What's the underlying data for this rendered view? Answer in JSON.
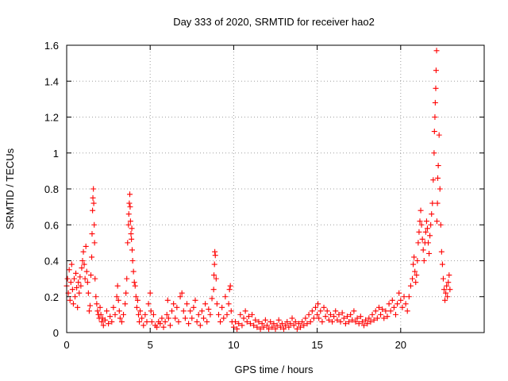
{
  "chart_data": {
    "type": "scatter",
    "title": "Day 333 of 2020, SRMTID for receiver hao2",
    "xlabel": "GPS time / hours",
    "ylabel": "SRMTID / TECUs",
    "xlim": [
      0,
      25
    ],
    "ylim": [
      0,
      1.6
    ],
    "x_ticks": [
      0,
      5,
      10,
      15,
      20
    ],
    "x_tick_labels": [
      "0",
      "5",
      "10",
      "15",
      "20"
    ],
    "y_ticks": [
      0,
      0.2,
      0.4,
      0.6,
      0.8,
      1,
      1.2,
      1.4,
      1.6
    ],
    "y_tick_labels": [
      "0",
      "0.2",
      "0.4",
      "0.6",
      "0.8",
      "1",
      "1.2",
      "1.4",
      "1.6"
    ],
    "grid": true,
    "marker": "plus",
    "series_color": "#ff0000",
    "series": [
      {
        "name": "SRMTID",
        "points": [
          [
            0.0,
            0.26
          ],
          [
            0.05,
            0.3
          ],
          [
            0.1,
            0.22
          ],
          [
            0.15,
            0.35
          ],
          [
            0.2,
            0.18
          ],
          [
            0.25,
            0.28
          ],
          [
            0.3,
            0.38
          ],
          [
            0.35,
            0.24
          ],
          [
            0.4,
            0.16
          ],
          [
            0.45,
            0.3
          ],
          [
            0.5,
            0.2
          ],
          [
            0.55,
            0.33
          ],
          [
            0.6,
            0.25
          ],
          [
            0.65,
            0.14
          ],
          [
            0.7,
            0.28
          ],
          [
            0.75,
            0.22
          ],
          [
            0.8,
            0.31
          ],
          [
            0.85,
            0.26
          ],
          [
            0.9,
            0.36
          ],
          [
            0.95,
            0.4
          ],
          [
            1.0,
            0.45
          ],
          [
            1.05,
            0.38
          ],
          [
            1.1,
            0.3
          ],
          [
            1.15,
            0.48
          ],
          [
            1.2,
            0.34
          ],
          [
            1.25,
            0.28
          ],
          [
            1.3,
            0.22
          ],
          [
            1.35,
            0.12
          ],
          [
            1.4,
            0.15
          ],
          [
            1.45,
            0.32
          ],
          [
            1.5,
            0.42
          ],
          [
            1.52,
            0.55
          ],
          [
            1.55,
            0.68
          ],
          [
            1.57,
            0.75
          ],
          [
            1.6,
            0.8
          ],
          [
            1.62,
            0.72
          ],
          [
            1.65,
            0.6
          ],
          [
            1.67,
            0.5
          ],
          [
            1.7,
            0.3
          ],
          [
            1.75,
            0.2
          ],
          [
            1.8,
            0.16
          ],
          [
            1.85,
            0.12
          ],
          [
            1.9,
            0.1
          ],
          [
            1.95,
            0.08
          ],
          [
            2.0,
            0.14
          ],
          [
            2.05,
            0.1
          ],
          [
            2.1,
            0.06
          ],
          [
            2.15,
            0.08
          ],
          [
            2.2,
            0.04
          ],
          [
            2.3,
            0.07
          ],
          [
            2.4,
            0.12
          ],
          [
            2.5,
            0.05
          ],
          [
            2.6,
            0.09
          ],
          [
            2.7,
            0.06
          ],
          [
            2.8,
            0.14
          ],
          [
            2.9,
            0.1
          ],
          [
            3.0,
            0.2
          ],
          [
            3.05,
            0.26
          ],
          [
            3.1,
            0.18
          ],
          [
            3.15,
            0.12
          ],
          [
            3.2,
            0.08
          ],
          [
            3.3,
            0.06
          ],
          [
            3.4,
            0.1
          ],
          [
            3.5,
            0.16
          ],
          [
            3.55,
            0.22
          ],
          [
            3.6,
            0.3
          ],
          [
            3.65,
            0.5
          ],
          [
            3.7,
            0.6
          ],
          [
            3.72,
            0.66
          ],
          [
            3.75,
            0.72
          ],
          [
            3.78,
            0.77
          ],
          [
            3.8,
            0.7
          ],
          [
            3.82,
            0.62
          ],
          [
            3.85,
            0.55
          ],
          [
            3.88,
            0.52
          ],
          [
            3.9,
            0.58
          ],
          [
            3.92,
            0.46
          ],
          [
            3.95,
            0.4
          ],
          [
            4.0,
            0.34
          ],
          [
            4.05,
            0.28
          ],
          [
            4.1,
            0.26
          ],
          [
            4.15,
            0.2
          ],
          [
            4.2,
            0.14
          ],
          [
            4.25,
            0.18
          ],
          [
            4.3,
            0.1
          ],
          [
            4.35,
            0.06
          ],
          [
            4.4,
            0.12
          ],
          [
            4.5,
            0.08
          ],
          [
            4.6,
            0.04
          ],
          [
            4.7,
            0.1
          ],
          [
            4.8,
            0.06
          ],
          [
            4.9,
            0.16
          ],
          [
            5.0,
            0.22
          ],
          [
            5.05,
            0.12
          ],
          [
            5.1,
            0.06
          ],
          [
            5.2,
            0.1
          ],
          [
            5.3,
            0.04
          ],
          [
            5.4,
            0.03
          ],
          [
            5.5,
            0.06
          ],
          [
            5.6,
            0.05
          ],
          [
            5.7,
            0.08
          ],
          [
            5.8,
            0.03
          ],
          [
            5.9,
            0.06
          ],
          [
            6.0,
            0.1
          ],
          [
            6.05,
            0.18
          ],
          [
            6.1,
            0.08
          ],
          [
            6.2,
            0.04
          ],
          [
            6.3,
            0.12
          ],
          [
            6.4,
            0.16
          ],
          [
            6.5,
            0.08
          ],
          [
            6.6,
            0.14
          ],
          [
            6.7,
            0.06
          ],
          [
            6.8,
            0.2
          ],
          [
            6.9,
            0.22
          ],
          [
            7.0,
            0.12
          ],
          [
            7.1,
            0.08
          ],
          [
            7.2,
            0.16
          ],
          [
            7.3,
            0.05
          ],
          [
            7.4,
            0.12
          ],
          [
            7.5,
            0.08
          ],
          [
            7.6,
            0.14
          ],
          [
            7.7,
            0.18
          ],
          [
            7.8,
            0.06
          ],
          [
            7.9,
            0.1
          ],
          [
            8.0,
            0.04
          ],
          [
            8.1,
            0.12
          ],
          [
            8.2,
            0.08
          ],
          [
            8.3,
            0.16
          ],
          [
            8.4,
            0.06
          ],
          [
            8.5,
            0.13
          ],
          [
            8.6,
            0.1
          ],
          [
            8.7,
            0.19
          ],
          [
            8.8,
            0.24
          ],
          [
            8.82,
            0.32
          ],
          [
            8.85,
            0.38
          ],
          [
            8.87,
            0.45
          ],
          [
            8.9,
            0.43
          ],
          [
            8.95,
            0.3
          ],
          [
            9.0,
            0.16
          ],
          [
            9.1,
            0.1
          ],
          [
            9.2,
            0.06
          ],
          [
            9.3,
            0.14
          ],
          [
            9.4,
            0.08
          ],
          [
            9.5,
            0.2
          ],
          [
            9.6,
            0.1
          ],
          [
            9.7,
            0.16
          ],
          [
            9.75,
            0.24
          ],
          [
            9.8,
            0.26
          ],
          [
            9.85,
            0.12
          ],
          [
            9.9,
            0.06
          ],
          [
            10.0,
            0.03
          ],
          [
            10.1,
            0.06
          ],
          [
            10.2,
            0.02
          ],
          [
            10.3,
            0.05
          ],
          [
            10.4,
            0.1
          ],
          [
            10.5,
            0.04
          ],
          [
            10.6,
            0.08
          ],
          [
            10.7,
            0.12
          ],
          [
            10.8,
            0.06
          ],
          [
            10.9,
            0.09
          ],
          [
            11.0,
            0.05
          ],
          [
            11.1,
            0.1
          ],
          [
            11.2,
            0.04
          ],
          [
            11.3,
            0.07
          ],
          [
            11.4,
            0.03
          ],
          [
            11.5,
            0.06
          ],
          [
            11.6,
            0.02
          ],
          [
            11.7,
            0.05
          ],
          [
            11.8,
            0.03
          ],
          [
            11.9,
            0.07
          ],
          [
            12.0,
            0.04
          ],
          [
            12.1,
            0.02
          ],
          [
            12.2,
            0.06
          ],
          [
            12.3,
            0.03
          ],
          [
            12.4,
            0.05
          ],
          [
            12.5,
            0.02
          ],
          [
            12.6,
            0.04
          ],
          [
            12.7,
            0.07
          ],
          [
            12.8,
            0.03
          ],
          [
            12.9,
            0.05
          ],
          [
            13.0,
            0.02
          ],
          [
            13.1,
            0.04
          ],
          [
            13.2,
            0.06
          ],
          [
            13.3,
            0.03
          ],
          [
            13.4,
            0.05
          ],
          [
            13.5,
            0.08
          ],
          [
            13.6,
            0.04
          ],
          [
            13.7,
            0.06
          ],
          [
            13.8,
            0.02
          ],
          [
            13.9,
            0.05
          ],
          [
            14.0,
            0.03
          ],
          [
            14.1,
            0.06
          ],
          [
            14.2,
            0.04
          ],
          [
            14.3,
            0.08
          ],
          [
            14.4,
            0.05
          ],
          [
            14.5,
            0.1
          ],
          [
            14.6,
            0.06
          ],
          [
            14.7,
            0.12
          ],
          [
            14.8,
            0.08
          ],
          [
            14.9,
            0.14
          ],
          [
            15.0,
            0.1
          ],
          [
            15.05,
            0.16
          ],
          [
            15.1,
            0.08
          ],
          [
            15.2,
            0.12
          ],
          [
            15.3,
            0.06
          ],
          [
            15.4,
            0.14
          ],
          [
            15.5,
            0.09
          ],
          [
            15.6,
            0.12
          ],
          [
            15.7,
            0.07
          ],
          [
            15.8,
            0.1
          ],
          [
            15.9,
            0.06
          ],
          [
            16.0,
            0.09
          ],
          [
            16.1,
            0.12
          ],
          [
            16.2,
            0.07
          ],
          [
            16.3,
            0.1
          ],
          [
            16.4,
            0.06
          ],
          [
            16.5,
            0.11
          ],
          [
            16.6,
            0.08
          ],
          [
            16.7,
            0.05
          ],
          [
            16.8,
            0.09
          ],
          [
            16.9,
            0.06
          ],
          [
            17.0,
            0.1
          ],
          [
            17.1,
            0.07
          ],
          [
            17.2,
            0.12
          ],
          [
            17.3,
            0.06
          ],
          [
            17.4,
            0.08
          ],
          [
            17.5,
            0.05
          ],
          [
            17.6,
            0.09
          ],
          [
            17.7,
            0.06
          ],
          [
            17.8,
            0.04
          ],
          [
            17.9,
            0.07
          ],
          [
            18.0,
            0.05
          ],
          [
            18.1,
            0.08
          ],
          [
            18.2,
            0.06
          ],
          [
            18.3,
            0.1
          ],
          [
            18.4,
            0.07
          ],
          [
            18.5,
            0.12
          ],
          [
            18.6,
            0.08
          ],
          [
            18.7,
            0.14
          ],
          [
            18.8,
            0.1
          ],
          [
            18.9,
            0.13
          ],
          [
            19.0,
            0.08
          ],
          [
            19.1,
            0.12
          ],
          [
            19.2,
            0.09
          ],
          [
            19.3,
            0.16
          ],
          [
            19.4,
            0.12
          ],
          [
            19.5,
            0.18
          ],
          [
            19.6,
            0.14
          ],
          [
            19.7,
            0.1
          ],
          [
            19.8,
            0.16
          ],
          [
            19.9,
            0.22
          ],
          [
            20.0,
            0.18
          ],
          [
            20.1,
            0.14
          ],
          [
            20.2,
            0.2
          ],
          [
            20.3,
            0.16
          ],
          [
            20.4,
            0.12
          ],
          [
            20.5,
            0.2
          ],
          [
            20.6,
            0.26
          ],
          [
            20.7,
            0.3
          ],
          [
            20.75,
            0.38
          ],
          [
            20.8,
            0.42
          ],
          [
            20.85,
            0.34
          ],
          [
            20.9,
            0.28
          ],
          [
            20.95,
            0.32
          ],
          [
            21.0,
            0.4
          ],
          [
            21.05,
            0.5
          ],
          [
            21.1,
            0.56
          ],
          [
            21.15,
            0.62
          ],
          [
            21.2,
            0.68
          ],
          [
            21.25,
            0.6
          ],
          [
            21.3,
            0.52
          ],
          [
            21.35,
            0.46
          ],
          [
            21.4,
            0.4
          ],
          [
            21.45,
            0.5
          ],
          [
            21.5,
            0.56
          ],
          [
            21.55,
            0.62
          ],
          [
            21.6,
            0.58
          ],
          [
            21.65,
            0.5
          ],
          [
            21.7,
            0.44
          ],
          [
            21.75,
            0.54
          ],
          [
            21.8,
            0.6
          ],
          [
            21.85,
            0.66
          ],
          [
            21.9,
            0.72
          ],
          [
            21.95,
            0.85
          ],
          [
            22.0,
            1.0
          ],
          [
            22.02,
            1.12
          ],
          [
            22.05,
            1.2
          ],
          [
            22.07,
            1.28
          ],
          [
            22.1,
            1.36
          ],
          [
            22.12,
            1.46
          ],
          [
            22.15,
            1.57
          ],
          [
            22.17,
            0.62
          ],
          [
            22.2,
            0.72
          ],
          [
            22.22,
            0.86
          ],
          [
            22.25,
            0.93
          ],
          [
            22.3,
            1.1
          ],
          [
            22.35,
            0.8
          ],
          [
            22.4,
            0.6
          ],
          [
            22.45,
            0.45
          ],
          [
            22.5,
            0.38
          ],
          [
            22.55,
            0.3
          ],
          [
            22.6,
            0.24
          ],
          [
            22.65,
            0.18
          ],
          [
            22.7,
            0.22
          ],
          [
            22.75,
            0.26
          ],
          [
            22.8,
            0.2
          ],
          [
            22.85,
            0.28
          ],
          [
            22.9,
            0.32
          ],
          [
            22.95,
            0.24
          ]
        ]
      }
    ]
  }
}
